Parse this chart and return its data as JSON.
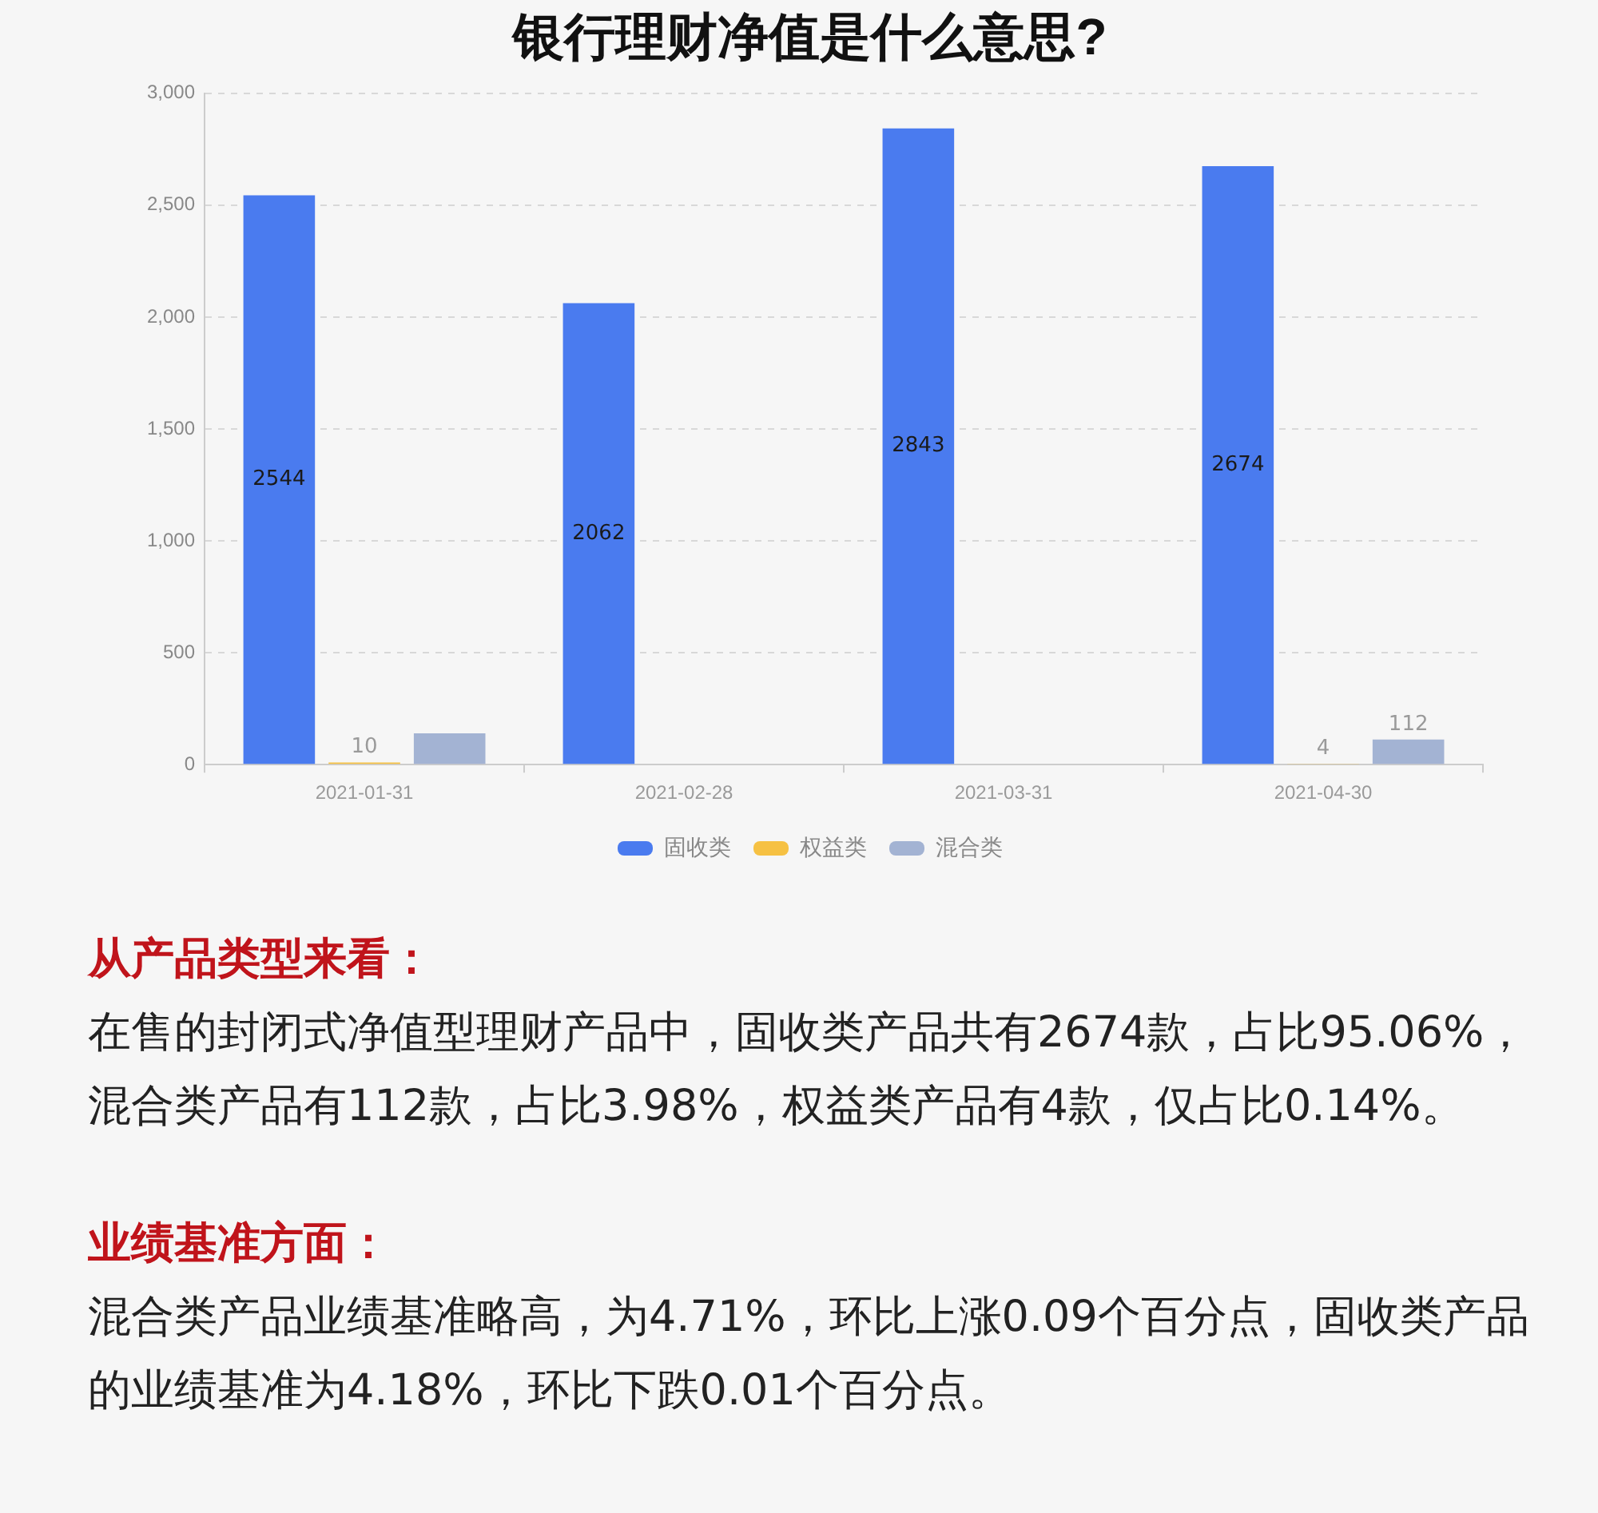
{
  "chart_data": {
    "type": "bar",
    "title": "银行理财净值是什么意思?",
    "categories": [
      "2021-01-31",
      "2021-02-28",
      "2021-03-31",
      "2021-04-30"
    ],
    "series": [
      {
        "name": "固收类",
        "color": "#4a7bef",
        "values": [
          2544,
          2062,
          2843,
          2674
        ],
        "value_labels": [
          "2544",
          "2062",
          "2843",
          "2674"
        ]
      },
      {
        "name": "权益类",
        "color": "#f6c143",
        "values": [
          10,
          null,
          null,
          4
        ],
        "value_labels": [
          "10",
          null,
          null,
          "4"
        ]
      },
      {
        "name": "混合类",
        "color": "#a3b3d3",
        "values": [
          140,
          null,
          null,
          112
        ],
        "value_labels": [
          null,
          null,
          null,
          "112"
        ]
      }
    ],
    "ylim": [
      0,
      3000
    ],
    "yticks": [
      0,
      500,
      {
        "value": 1000,
        "label": "1,000"
      },
      {
        "value": 1500,
        "label": "1,500"
      },
      {
        "value": 2000,
        "label": "2,000"
      },
      {
        "value": 2500,
        "label": "2,500"
      },
      {
        "value": 3000,
        "label": "3,000"
      }
    ],
    "grid": "y",
    "legend": "bottom",
    "annotations": [
      "从产品类型来看：",
      "在售的封闭式净值型理财产品中，固收类产品共有2674款，占比95.06%，混合类产品有112款，占比3.98%，权益类产品有4款，仅占比0.14%。",
      "业绩基准方面：",
      "混合类产品业绩基准略高，为4.71%，环比上涨0.09个百分点，固收类产品的业绩基准为4.18%，环比下跌0.01个百分点。"
    ]
  }
}
